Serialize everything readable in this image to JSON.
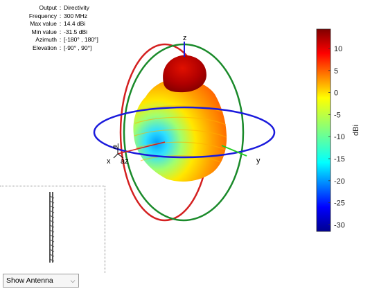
{
  "info": [
    {
      "key": "Output",
      "value": "Directivity"
    },
    {
      "key": "Frequency",
      "value": "300 MHz"
    },
    {
      "key": "Max value",
      "value": "14.4 dBi"
    },
    {
      "key": "Min value",
      "value": "-31.5 dBi"
    },
    {
      "key": "Azimuth",
      "value": "[-180° , 180°]"
    },
    {
      "key": "Elevation",
      "value": "[-90° , 90°]"
    }
  ],
  "axes": {
    "z": "z",
    "x": "x",
    "y": "y",
    "el": "el",
    "az": "az"
  },
  "colorbar": {
    "title": "dBi",
    "ticks": [
      "10",
      "5",
      "0",
      "-5",
      "-10",
      "-15",
      "-20",
      "-25",
      "-30"
    ],
    "tick_values": [
      10,
      5,
      0,
      -5,
      -10,
      -15,
      -20,
      -25,
      -30
    ],
    "min": -31.5,
    "max": 14.4,
    "colormap": "jet"
  },
  "colors": {
    "azimuth_circle": "#1a1adc",
    "elevation_circle_red": "#d42020",
    "elevation_circle_green": "#1a8a2a"
  },
  "dropdown": {
    "selected": "Show Antenna"
  }
}
